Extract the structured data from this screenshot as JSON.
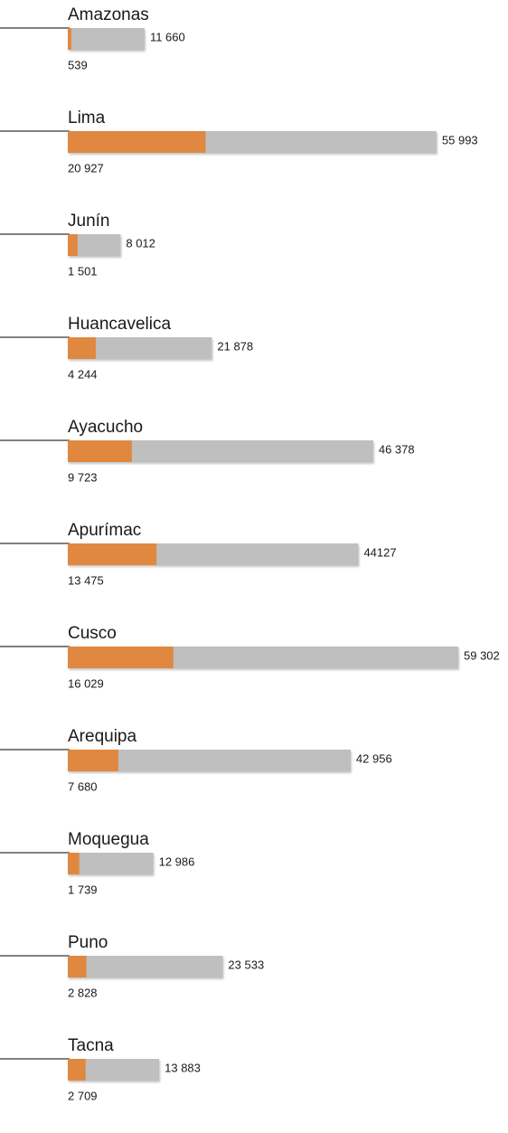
{
  "chart_data": {
    "type": "bar",
    "categories": [
      "Amazonas",
      "Lima",
      "Junín",
      "Huancavelica",
      "Ayacucho",
      "Apurímac",
      "Cusco",
      "Arequipa",
      "Moquegua",
      "Puno",
      "Tacna"
    ],
    "series": [
      {
        "color": "#bfbfbf",
        "values": [
          11660,
          55993,
          8012,
          21878,
          46378,
          44127,
          59302,
          42956,
          12986,
          23533,
          13883
        ],
        "value_labels": [
          "11 660",
          "55 993",
          "8 012",
          "21 878",
          "46 378",
          "44127",
          "59 302",
          "42 956",
          "12 986",
          "23 533",
          "13 883"
        ]
      },
      {
        "color": "#e08840",
        "values": [
          539,
          20927,
          1501,
          4244,
          9723,
          13475,
          16029,
          7680,
          1739,
          2828,
          2709
        ],
        "value_labels": [
          "539",
          "20 927",
          "1 501",
          "4 244",
          "9 723",
          "13 475",
          "16 029",
          "7 680",
          "1 739",
          "2 828",
          "2 709"
        ]
      }
    ]
  }
}
